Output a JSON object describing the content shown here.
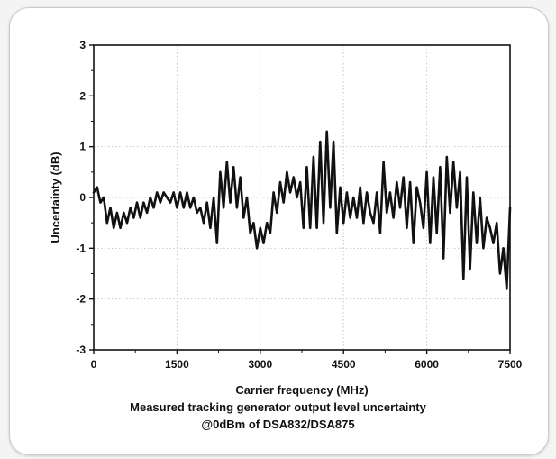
{
  "chart_data": {
    "type": "line",
    "xlabel": "Carrier frequency (MHz)",
    "ylabel": "Uncertainty (dB)",
    "caption_lines": [
      "Measured tracking generator output level uncertainty",
      "@0dBm of DSA832/DSA875"
    ],
    "xlim": [
      0,
      7500
    ],
    "ylim": [
      -3,
      3
    ],
    "xticks": [
      "0",
      "1500",
      "3000",
      "4500",
      "6000",
      "7500"
    ],
    "yticks": [
      "3",
      "2",
      "1",
      "0",
      "-1",
      "-2",
      "-3"
    ],
    "grid": true,
    "line_color": "#111111",
    "series": [
      {
        "x": [
          0,
          60,
          120,
          180,
          240,
          300,
          360,
          420,
          480,
          540,
          600,
          660,
          720,
          780,
          840,
          900,
          960,
          1020,
          1080,
          1140,
          1200,
          1260,
          1320,
          1380,
          1440,
          1500,
          1560,
          1620,
          1680,
          1740,
          1800,
          1860,
          1920,
          1980,
          2040,
          2100,
          2160,
          2220,
          2280,
          2340,
          2400,
          2460,
          2520,
          2580,
          2640,
          2700,
          2760,
          2820,
          2880,
          2940,
          3000,
          3060,
          3120,
          3180,
          3240,
          3300,
          3360,
          3420,
          3480,
          3540,
          3600,
          3660,
          3720,
          3780,
          3840,
          3900,
          3960,
          4020,
          4080,
          4140,
          4200,
          4260,
          4320,
          4380,
          4440,
          4500,
          4560,
          4620,
          4680,
          4740,
          4800,
          4860,
          4920,
          4980,
          5040,
          5100,
          5160,
          5220,
          5280,
          5340,
          5400,
          5460,
          5520,
          5580,
          5640,
          5700,
          5760,
          5820,
          5880,
          5940,
          6000,
          6060,
          6120,
          6180,
          6240,
          6300,
          6360,
          6420,
          6480,
          6540,
          6600,
          6660,
          6720,
          6780,
          6840,
          6900,
          6960,
          7020,
          7080,
          7140,
          7200,
          7260,
          7320,
          7380,
          7440,
          7500
        ],
        "y": [
          0.1,
          0.2,
          -0.1,
          0.0,
          -0.5,
          -0.2,
          -0.6,
          -0.3,
          -0.6,
          -0.3,
          -0.5,
          -0.2,
          -0.4,
          -0.1,
          -0.4,
          -0.1,
          -0.3,
          0.0,
          -0.2,
          0.1,
          -0.1,
          0.1,
          0.0,
          -0.1,
          0.1,
          -0.2,
          0.1,
          -0.2,
          0.1,
          -0.2,
          0.0,
          -0.3,
          -0.2,
          -0.5,
          -0.1,
          -0.6,
          0.0,
          -0.9,
          0.5,
          -0.2,
          0.7,
          -0.1,
          0.6,
          -0.2,
          0.4,
          -0.4,
          0.0,
          -0.7,
          -0.5,
          -1.0,
          -0.6,
          -0.9,
          -0.5,
          -0.7,
          0.1,
          -0.3,
          0.3,
          -0.1,
          0.5,
          0.1,
          0.4,
          0.0,
          0.3,
          -0.6,
          0.6,
          -0.6,
          0.8,
          -0.6,
          1.1,
          -0.5,
          1.3,
          -0.2,
          1.1,
          -0.7,
          0.2,
          -0.5,
          0.1,
          -0.4,
          0.0,
          -0.4,
          0.2,
          -0.5,
          0.1,
          -0.3,
          -0.5,
          0.1,
          -0.7,
          0.7,
          -0.3,
          0.1,
          -0.4,
          0.3,
          -0.2,
          0.4,
          -0.6,
          0.3,
          -0.9,
          0.2,
          -0.1,
          -0.6,
          0.5,
          -0.9,
          0.4,
          -0.7,
          0.6,
          -1.2,
          0.8,
          -0.3,
          0.7,
          -0.2,
          0.5,
          -1.6,
          0.4,
          -1.4,
          0.1,
          -0.9,
          0.0,
          -1.0,
          -0.4,
          -0.6,
          -0.9,
          -0.5,
          -1.5,
          -1.0,
          -1.8,
          -0.2
        ]
      }
    ]
  }
}
